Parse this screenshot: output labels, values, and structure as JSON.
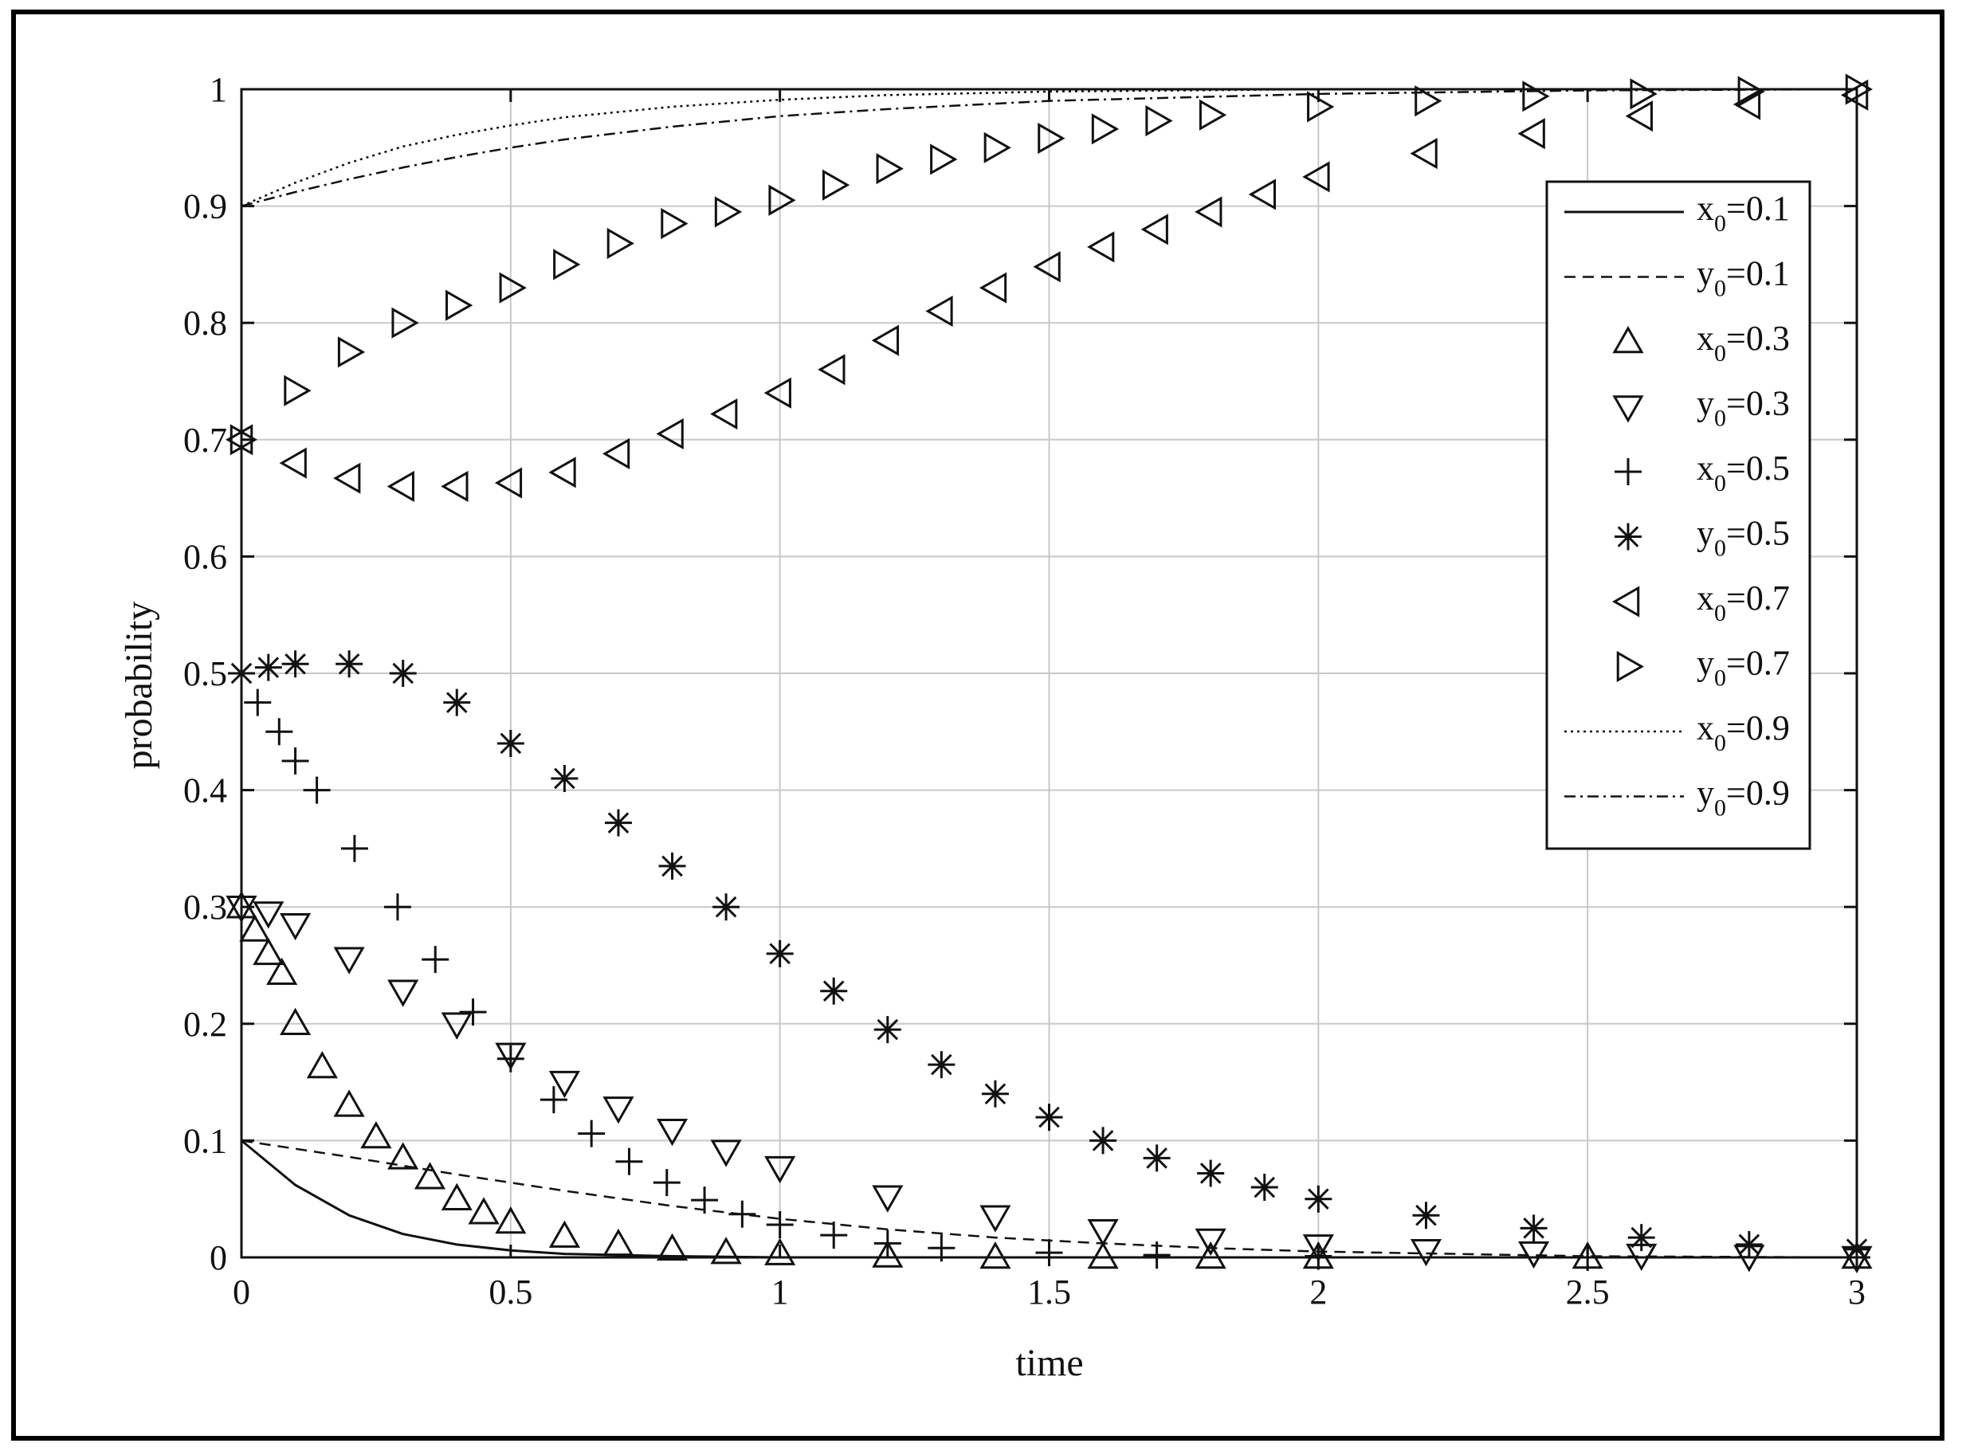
{
  "chart_data": {
    "type": "scatter",
    "title": "",
    "xlabel": "time",
    "ylabel": "probability",
    "xlim": [
      0,
      3
    ],
    "ylim": [
      0,
      1
    ],
    "xticks": [
      0,
      0.5,
      1,
      1.5,
      2,
      2.5,
      3
    ],
    "xtick_labels": [
      "0",
      "0.5",
      "1",
      "1.5",
      "2",
      "2.5",
      "3"
    ],
    "yticks": [
      0,
      0.1,
      0.2,
      0.3,
      0.4,
      0.5,
      0.6,
      0.7,
      0.8,
      0.9,
      1
    ],
    "ytick_labels": [
      "0",
      "0.1",
      "0.2",
      "0.3",
      "0.4",
      "0.5",
      "0.6",
      "0.7",
      "0.8",
      "0.9",
      "1"
    ],
    "grid": true,
    "legend_position": "top-right",
    "colors": {
      "ink": "#111111",
      "grid": "#c8c8c8"
    },
    "series": [
      {
        "name": "x0=0.1",
        "label_var": "x",
        "label_sub": "0",
        "label_value": "=0.1",
        "style": "solid",
        "marker": "none",
        "x": [
          0,
          0.1,
          0.2,
          0.3,
          0.4,
          0.5,
          0.6,
          0.8,
          1.0,
          1.5,
          2.0,
          2.5,
          3.0
        ],
        "y": [
          0.1,
          0.062,
          0.036,
          0.02,
          0.011,
          0.006,
          0.003,
          0.001,
          0.0,
          0.0,
          0.0,
          0.0,
          0.0
        ]
      },
      {
        "name": "y0=0.1",
        "label_var": "y",
        "label_sub": "0",
        "label_value": "=0.1",
        "style": "dashed",
        "marker": "none",
        "x": [
          0,
          0.2,
          0.4,
          0.6,
          0.8,
          1.0,
          1.2,
          1.4,
          1.6,
          1.8,
          2.0,
          2.5,
          3.0
        ],
        "y": [
          0.1,
          0.086,
          0.071,
          0.057,
          0.044,
          0.033,
          0.024,
          0.017,
          0.012,
          0.008,
          0.005,
          0.001,
          0.0
        ]
      },
      {
        "name": "x0=0.3",
        "label_var": "x",
        "label_sub": "0",
        "label_value": "=0.3",
        "style": "none",
        "marker": "triangle-up",
        "x": [
          0,
          0.025,
          0.05,
          0.075,
          0.1,
          0.15,
          0.2,
          0.25,
          0.3,
          0.35,
          0.4,
          0.45,
          0.5,
          0.6,
          0.7,
          0.8,
          0.9,
          1.0,
          1.2,
          1.4,
          1.6,
          1.8,
          2.0,
          2.5,
          3.0
        ],
        "y": [
          0.3,
          0.28,
          0.26,
          0.243,
          0.2,
          0.163,
          0.13,
          0.103,
          0.085,
          0.068,
          0.05,
          0.038,
          0.03,
          0.018,
          0.011,
          0.007,
          0.004,
          0.003,
          0.001,
          0.0,
          0.0,
          0.0,
          0.0,
          0.0,
          0.0
        ]
      },
      {
        "name": "y0=0.3",
        "label_var": "y",
        "label_sub": "0",
        "label_value": "=0.3",
        "style": "none",
        "marker": "triangle-down",
        "x": [
          0,
          0.05,
          0.1,
          0.2,
          0.3,
          0.4,
          0.5,
          0.6,
          0.7,
          0.8,
          0.9,
          1.0,
          1.2,
          1.4,
          1.6,
          1.8,
          2.0,
          2.2,
          2.4,
          2.6,
          2.8,
          3.0
        ],
        "y": [
          0.3,
          0.295,
          0.285,
          0.256,
          0.228,
          0.2,
          0.174,
          0.15,
          0.128,
          0.109,
          0.091,
          0.077,
          0.052,
          0.035,
          0.023,
          0.015,
          0.01,
          0.006,
          0.004,
          0.002,
          0.001,
          0.0
        ]
      },
      {
        "name": "x0=0.5",
        "label_var": "x",
        "label_sub": "0",
        "label_value": "=0.5",
        "style": "none",
        "marker": "plus",
        "x": [
          0,
          0.03,
          0.07,
          0.1,
          0.14,
          0.21,
          0.29,
          0.36,
          0.43,
          0.5,
          0.58,
          0.65,
          0.72,
          0.79,
          0.86,
          0.93,
          1.0,
          1.1,
          1.2,
          1.3,
          1.5,
          1.7,
          2.0,
          2.5,
          3.0
        ],
        "y": [
          0.5,
          0.475,
          0.45,
          0.425,
          0.4,
          0.35,
          0.3,
          0.255,
          0.21,
          0.17,
          0.135,
          0.106,
          0.082,
          0.064,
          0.049,
          0.037,
          0.028,
          0.019,
          0.012,
          0.008,
          0.004,
          0.002,
          0.001,
          0.0,
          0.0
        ]
      },
      {
        "name": "y0=0.5",
        "label_var": "y",
        "label_sub": "0",
        "label_value": "=0.5",
        "style": "none",
        "marker": "asterisk",
        "x": [
          0,
          0.05,
          0.1,
          0.2,
          0.3,
          0.4,
          0.5,
          0.6,
          0.7,
          0.8,
          0.9,
          1.0,
          1.1,
          1.2,
          1.3,
          1.4,
          1.5,
          1.6,
          1.7,
          1.8,
          1.9,
          2.0,
          2.2,
          2.4,
          2.6,
          2.8,
          3.0
        ],
        "y": [
          0.5,
          0.505,
          0.508,
          0.508,
          0.5,
          0.475,
          0.44,
          0.41,
          0.372,
          0.335,
          0.3,
          0.26,
          0.228,
          0.195,
          0.165,
          0.14,
          0.12,
          0.1,
          0.085,
          0.072,
          0.06,
          0.05,
          0.036,
          0.025,
          0.017,
          0.011,
          0.007
        ]
      },
      {
        "name": "x0=0.7",
        "label_var": "x",
        "label_sub": "0",
        "label_value": "=0.7",
        "style": "none",
        "marker": "triangle-left",
        "x": [
          0,
          0.1,
          0.2,
          0.3,
          0.4,
          0.5,
          0.6,
          0.7,
          0.8,
          0.9,
          1.0,
          1.1,
          1.2,
          1.3,
          1.4,
          1.5,
          1.6,
          1.7,
          1.8,
          1.9,
          2.0,
          2.2,
          2.4,
          2.6,
          2.8,
          3.0
        ],
        "y": [
          0.7,
          0.68,
          0.667,
          0.66,
          0.66,
          0.663,
          0.672,
          0.688,
          0.705,
          0.722,
          0.74,
          0.76,
          0.785,
          0.81,
          0.83,
          0.848,
          0.865,
          0.88,
          0.895,
          0.91,
          0.925,
          0.945,
          0.962,
          0.977,
          0.987,
          0.995
        ]
      },
      {
        "name": "y0=0.7",
        "label_var": "y",
        "label_sub": "0",
        "label_value": "=0.7",
        "style": "none",
        "marker": "triangle-right",
        "x": [
          0,
          0.1,
          0.2,
          0.3,
          0.4,
          0.5,
          0.6,
          0.7,
          0.8,
          0.9,
          1.0,
          1.1,
          1.2,
          1.3,
          1.4,
          1.5,
          1.6,
          1.7,
          1.8,
          2.0,
          2.2,
          2.4,
          2.6,
          2.8,
          3.0
        ],
        "y": [
          0.7,
          0.742,
          0.775,
          0.8,
          0.815,
          0.83,
          0.85,
          0.868,
          0.885,
          0.895,
          0.905,
          0.918,
          0.932,
          0.94,
          0.95,
          0.958,
          0.966,
          0.973,
          0.978,
          0.985,
          0.99,
          0.994,
          0.996,
          0.998,
          1.0
        ]
      },
      {
        "name": "x0=0.9",
        "label_var": "x",
        "label_sub": "0",
        "label_value": "=0.9",
        "style": "dotted",
        "marker": "none",
        "x": [
          0,
          0.1,
          0.2,
          0.3,
          0.4,
          0.5,
          0.6,
          0.8,
          1.0,
          1.2,
          1.5,
          2.0,
          2.5,
          3.0
        ],
        "y": [
          0.9,
          0.92,
          0.937,
          0.951,
          0.961,
          0.969,
          0.976,
          0.985,
          0.991,
          0.995,
          0.998,
          1.0,
          1.0,
          1.0
        ]
      },
      {
        "name": "y0=0.9",
        "label_var": "y",
        "label_sub": "0",
        "label_value": "=0.9",
        "style": "dashdot",
        "marker": "none",
        "x": [
          0,
          0.1,
          0.2,
          0.3,
          0.4,
          0.5,
          0.6,
          0.8,
          1.0,
          1.2,
          1.5,
          2.0,
          2.5,
          3.0
        ],
        "y": [
          0.9,
          0.912,
          0.923,
          0.933,
          0.942,
          0.95,
          0.957,
          0.968,
          0.977,
          0.983,
          0.99,
          0.996,
          0.999,
          1.0
        ]
      }
    ]
  }
}
